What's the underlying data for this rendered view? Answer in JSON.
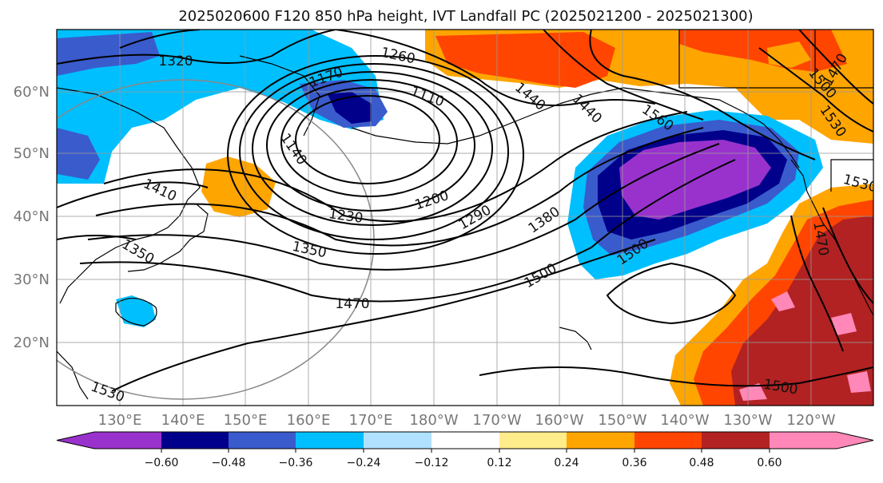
{
  "title": "2025020600 F120 850 hPa height, IVT Landfall PC (2025021200 - 2025021300)",
  "map": {
    "lat_labels": [
      "60°N",
      "50°N",
      "40°N",
      "30°N",
      "20°N"
    ],
    "lon_labels": [
      "130°E",
      "140°E",
      "150°E",
      "160°E",
      "170°E",
      "180°W",
      "170°W",
      "160°W",
      "150°W",
      "140°W",
      "130°W",
      "120°W"
    ],
    "contour_labels": [
      "1320",
      "1260",
      "1170",
      "1110",
      "1140",
      "1410",
      "1200",
      "1230",
      "1290",
      "1380",
      "1350",
      "1560",
      "1500",
      "1470",
      "1530",
      "1440",
      "1470",
      "1500",
      "1530",
      "1500",
      "1470",
      "1500",
      "1440",
      "1350",
      "1530"
    ]
  },
  "colorbar": {
    "ticks": [
      "−0.60",
      "−0.48",
      "−0.36",
      "−0.24",
      "−0.12",
      "0.12",
      "0.24",
      "0.36",
      "0.48",
      "0.60"
    ],
    "colors": [
      "#9932cc",
      "#00008b",
      "#3a5bcc",
      "#00bfff",
      "#b0e2ff",
      "#ffffff",
      "#ffec8b",
      "#ffa500",
      "#ff4500",
      "#b22222",
      "#ff88b8"
    ]
  }
}
